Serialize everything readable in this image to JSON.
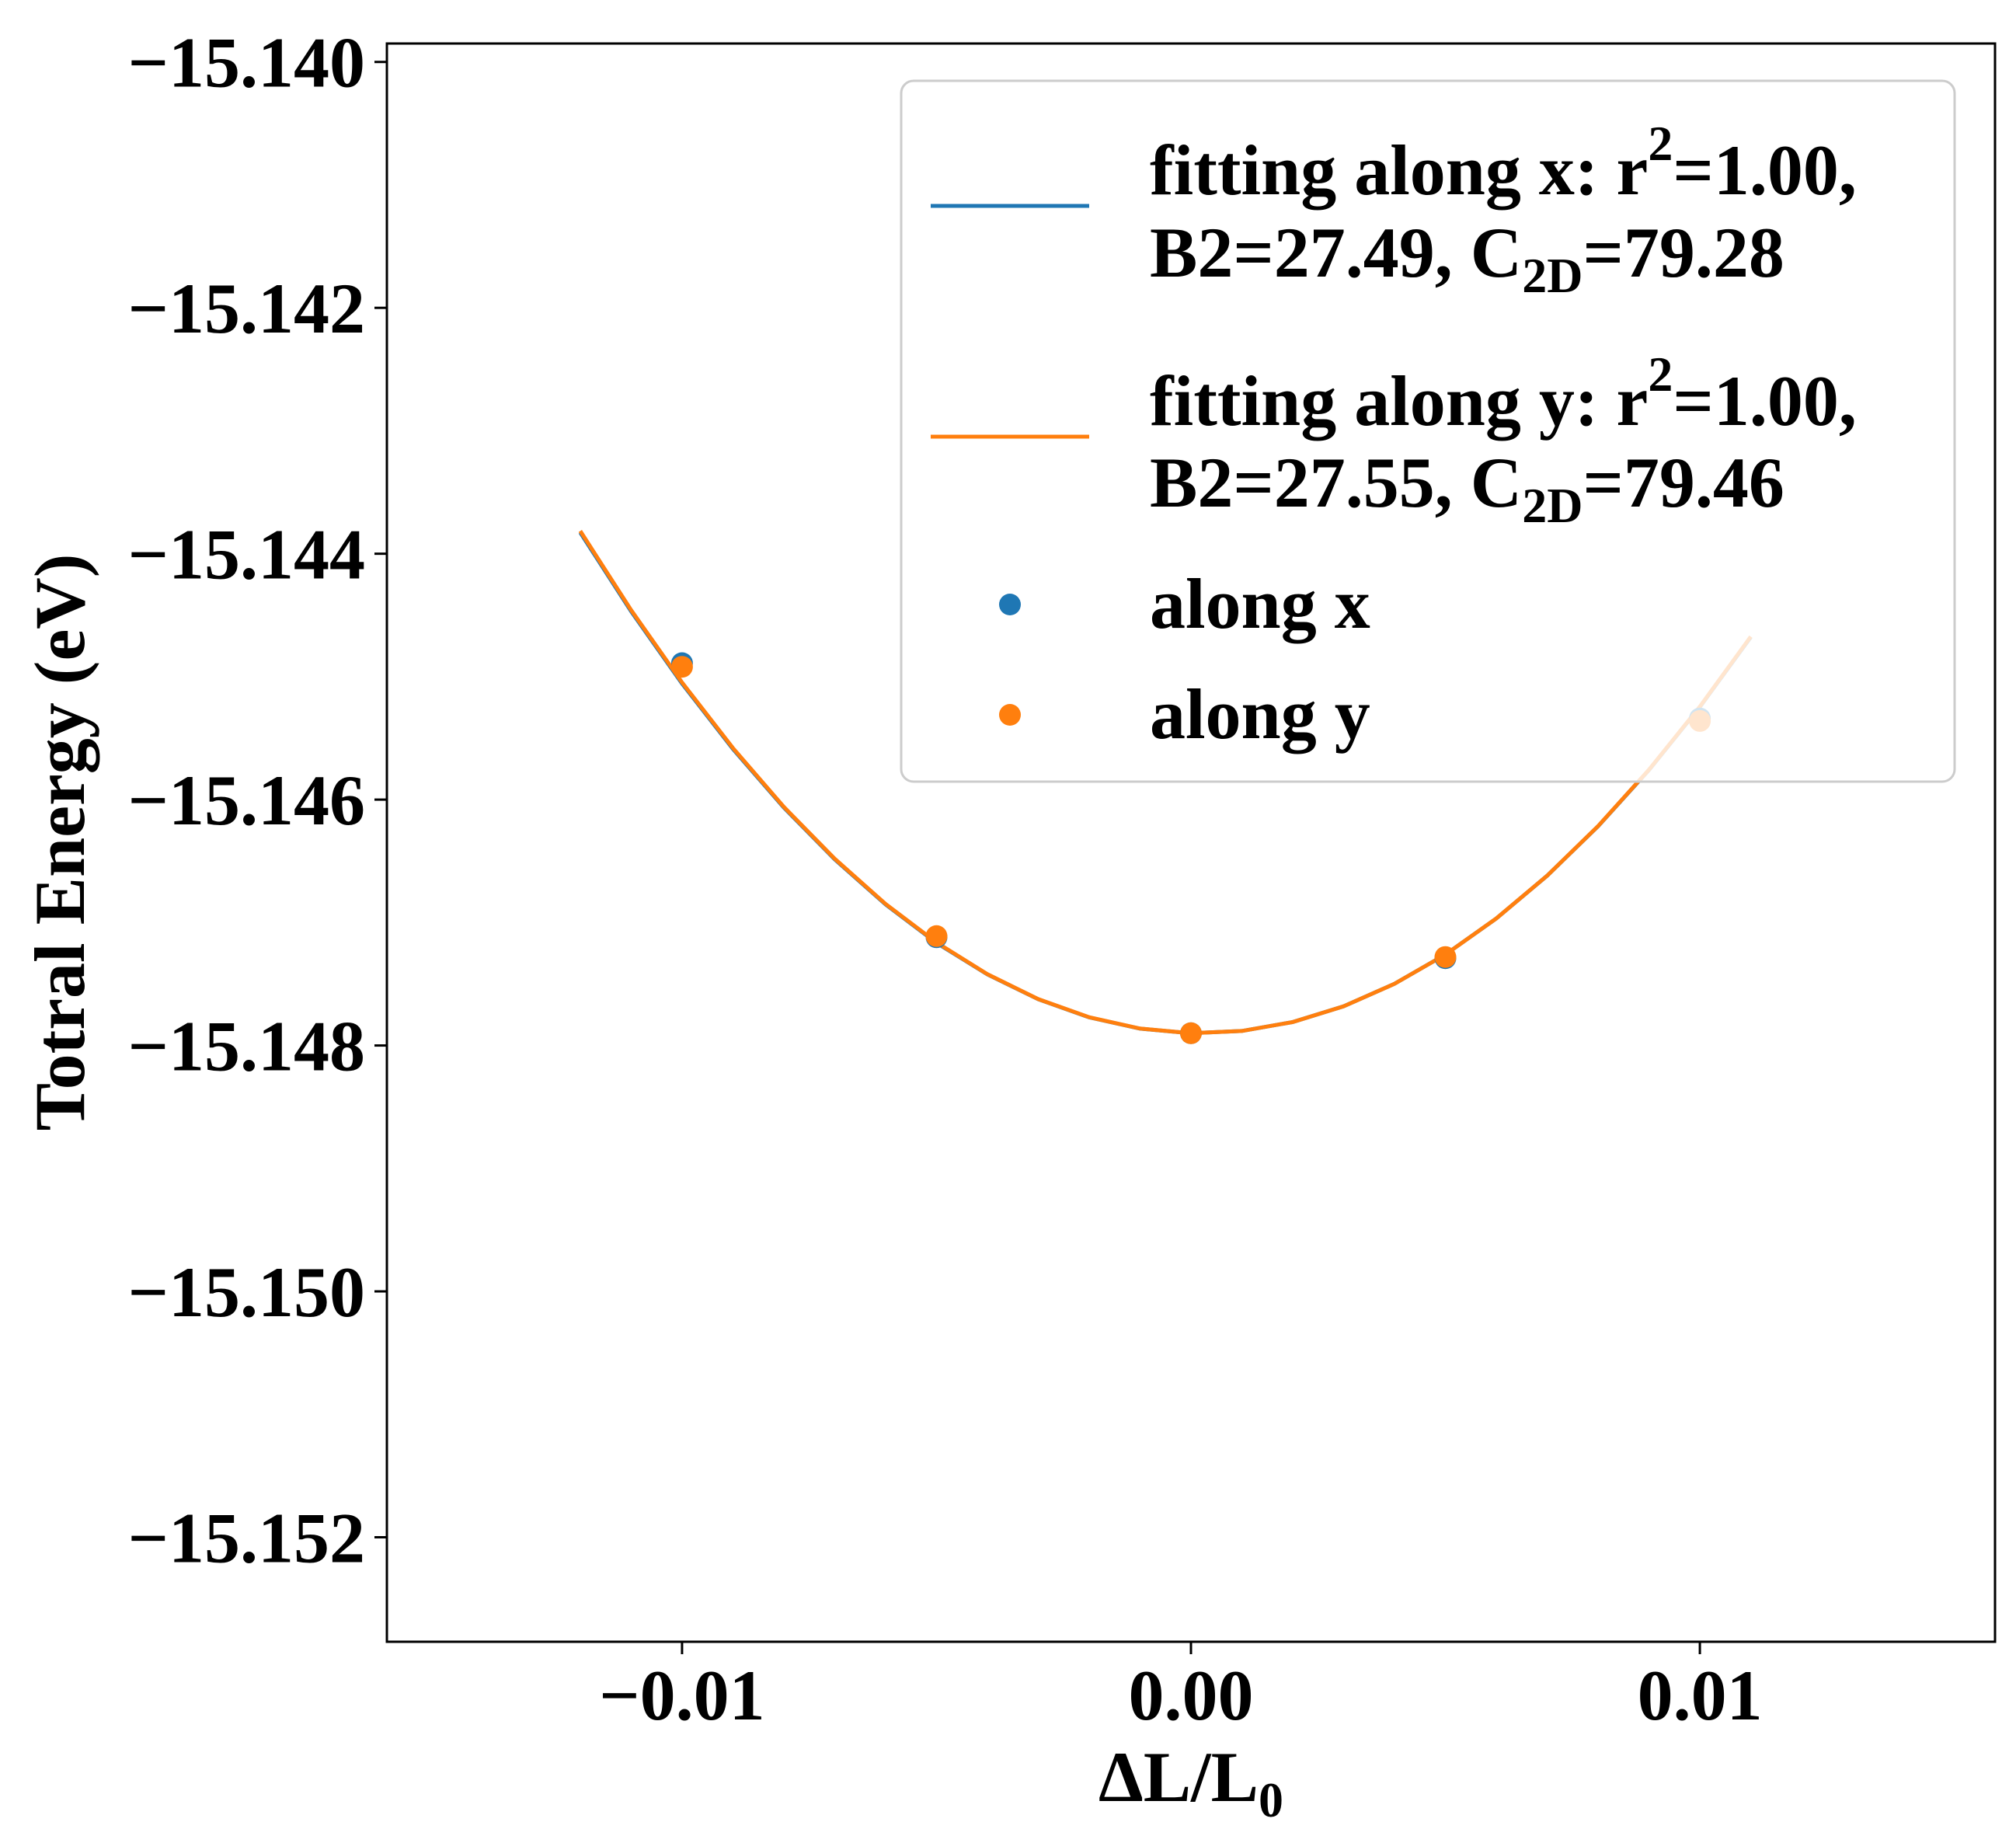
{
  "chart_data": {
    "type": "scatter",
    "xlabel": {
      "main": "ΔL/L",
      "sub": "0"
    },
    "ylabel": "Totral Energy (eV)",
    "xlim": [
      -0.0158,
      0.0158
    ],
    "ylim": [
      -15.15285,
      -15.13985
    ],
    "xticks": [
      -0.01,
      0.0,
      0.01
    ],
    "xtick_labels": [
      "−0.01",
      "0.00",
      "0.01"
    ],
    "yticks": [
      -15.14,
      -15.142,
      -15.144,
      -15.146,
      -15.148,
      -15.15,
      -15.152
    ],
    "ytick_labels": [
      "−15.140",
      "−15.142",
      "−15.144",
      "−15.146",
      "−15.148",
      "−15.150",
      "−15.152"
    ],
    "grid": false,
    "legend_position": "upper right",
    "fits": [
      {
        "name": "fitting along x",
        "color": "#1f77b4",
        "x_range": [
          -0.012,
          0.011
        ],
        "coefficients": {
          "a": 27.49,
          "b": -9.5,
          "c": -15.1479
        },
        "legend_line1": {
          "pre": "fitting along x: r",
          "sup": "2",
          "post": "=1.00,"
        },
        "legend_line2": {
          "pre": "B2=27.49, C",
          "sub": "2D",
          "post": "=79.28"
        }
      },
      {
        "name": "fitting along y",
        "color": "#ff7f0e",
        "x_range": [
          -0.012,
          0.011
        ],
        "coefficients": {
          "a": 27.55,
          "b": -9.8,
          "c": -15.1479
        },
        "legend_line1": {
          "pre": "fitting along y: r",
          "sup": "2",
          "post": "=1.00,"
        },
        "legend_line2": {
          "pre": "B2=27.55, C",
          "sub": "2D",
          "post": "=79.46"
        }
      }
    ],
    "series": [
      {
        "name": "along x",
        "color": "#1f77b4",
        "x": [
          -0.01,
          -0.005,
          0.0,
          0.005,
          0.01
        ],
        "y": [
          -15.14489,
          -15.14712,
          -15.1479,
          -15.14729,
          -15.14534
        ]
      },
      {
        "name": "along y",
        "color": "#ff7f0e",
        "x": [
          -0.01,
          -0.005,
          0.0,
          0.005,
          0.01
        ],
        "y": [
          -15.14492,
          -15.14711,
          -15.1479,
          -15.14728,
          -15.14536
        ]
      }
    ]
  }
}
